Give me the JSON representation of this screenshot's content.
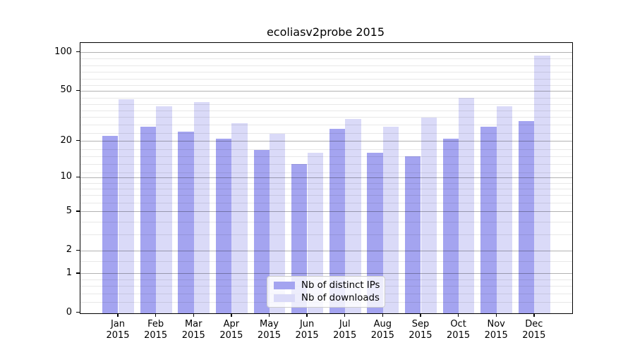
{
  "chart_data": {
    "type": "bar",
    "title": "ecoliasv2probe 2015",
    "categories": [
      "Jan",
      "Feb",
      "Mar",
      "Apr",
      "May",
      "Jun",
      "Jul",
      "Aug",
      "Sep",
      "Oct",
      "Nov",
      "Dec"
    ],
    "category_year": "2015",
    "series": [
      {
        "name": "Nb of distinct IPs",
        "color": "#a4a4f0",
        "values": [
          22,
          26,
          24,
          21,
          17,
          13,
          25,
          16,
          15,
          21,
          26,
          29
        ]
      },
      {
        "name": "Nb of downloads",
        "color": "#dadaf8",
        "values": [
          43,
          38,
          41,
          28,
          23,
          16,
          30,
          26,
          31,
          44,
          38,
          95
        ]
      }
    ],
    "xlabel": "",
    "ylabel": "",
    "yscale": "log1p",
    "ylim": [
      0,
      110
    ],
    "yticks": [
      100,
      50,
      20,
      10,
      5,
      2,
      1,
      0
    ],
    "y_minor_gridlines": [
      0.2,
      0.4,
      0.6,
      0.8,
      1.5,
      3,
      4,
      6,
      7,
      8,
      9,
      11,
      13,
      15,
      17,
      23,
      27,
      31,
      35,
      39,
      44,
      55,
      62,
      70,
      79,
      89
    ],
    "grid": true,
    "legend_position": "lower center"
  }
}
